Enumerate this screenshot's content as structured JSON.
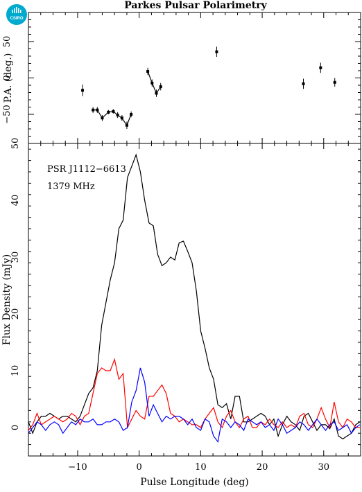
{
  "title": "Parkes Pulsar Polarimetry",
  "logo": {
    "text": "CSIRO",
    "color": "#00A9CE"
  },
  "colors": {
    "total": "#000000",
    "linear": "#ff0000",
    "circular": "#0000ff"
  },
  "annotations": {
    "pulsar": "PSR J1112−6613",
    "frequency": "1379 MHz"
  },
  "chart_data": [
    {
      "type": "scatter",
      "panel": "position-angle",
      "ylabel": "P.A. (deg.)",
      "xlim": [
        -18,
        36
      ],
      "ylim": [
        -90,
        90
      ],
      "yticks": [
        50,
        0,
        -50
      ],
      "ytick_labels": [
        "50",
        "0",
        "−50"
      ],
      "points": [
        {
          "x": -9.2,
          "y": -17,
          "err": 8
        },
        {
          "x": -7.5,
          "y": -44,
          "err": 4
        },
        {
          "x": -6.8,
          "y": -44,
          "err": 4
        },
        {
          "x": -6.0,
          "y": -55,
          "err": 4
        },
        {
          "x": -5.0,
          "y": -47,
          "err": 3
        },
        {
          "x": -4.2,
          "y": -46,
          "err": 3
        },
        {
          "x": -3.5,
          "y": -51,
          "err": 4
        },
        {
          "x": -2.8,
          "y": -55,
          "err": 4
        },
        {
          "x": -2.0,
          "y": -65,
          "err": 5
        },
        {
          "x": -1.3,
          "y": -50,
          "err": 4
        },
        {
          "x": 1.4,
          "y": 9,
          "err": 5
        },
        {
          "x": 2.1,
          "y": -7,
          "err": 5
        },
        {
          "x": 2.8,
          "y": -21,
          "err": 5
        },
        {
          "x": 3.5,
          "y": -12,
          "err": 5
        },
        {
          "x": 12.6,
          "y": 36,
          "err": 7
        },
        {
          "x": 26.7,
          "y": -8,
          "err": 7
        },
        {
          "x": 29.5,
          "y": 14,
          "err": 7
        },
        {
          "x": 31.8,
          "y": -6,
          "err": 6
        }
      ],
      "connected_segments": [
        [
          1,
          9
        ],
        [
          10,
          13
        ]
      ]
    },
    {
      "type": "line",
      "panel": "profile",
      "xlabel": "Pulse Longitude (deg)",
      "ylabel": "Flux Density (mJy)",
      "xlim": [
        -18,
        36
      ],
      "ylim": [
        -5,
        50
      ],
      "xticks": [
        -10,
        0,
        10,
        20,
        30
      ],
      "xtick_labels": [
        "−10",
        "0",
        "10",
        "20",
        "30"
      ],
      "yticks": [
        0,
        10,
        20,
        30,
        40,
        50
      ],
      "ytick_labels": [
        "0",
        "10",
        "20",
        "30",
        "40",
        "50"
      ],
      "x": [
        -18,
        -17.3,
        -16.6,
        -15.9,
        -15.2,
        -14.5,
        -13.8,
        -13.1,
        -12.4,
        -11.7,
        -11.0,
        -10.3,
        -9.6,
        -8.9,
        -8.2,
        -7.5,
        -6.8,
        -6.1,
        -5.4,
        -4.7,
        -4.0,
        -3.3,
        -2.6,
        -1.9,
        -1.2,
        -0.5,
        0.2,
        0.9,
        1.6,
        2.3,
        3.0,
        3.7,
        4.4,
        5.1,
        5.8,
        6.5,
        7.2,
        7.9,
        8.6,
        9.3,
        10.0,
        10.7,
        11.4,
        12.1,
        12.8,
        13.5,
        14.2,
        14.9,
        15.6,
        16.3,
        17.0,
        17.7,
        18.4,
        19.1,
        19.8,
        20.5,
        21.2,
        21.9,
        22.6,
        23.3,
        24.0,
        24.7,
        25.4,
        26.1,
        26.8,
        27.5,
        28.2,
        28.9,
        29.6,
        30.3,
        31.0,
        31.7,
        32.4,
        33.1,
        33.8,
        34.5,
        35.2,
        35.9
      ],
      "series": [
        {
          "key": "total",
          "values": [
            1.0,
            -1.0,
            1.0,
            2.0,
            2.0,
            2.5,
            2.0,
            1.5,
            2.0,
            2.0,
            1.5,
            1.0,
            2.0,
            4.0,
            6.0,
            7.0,
            10.0,
            18.0,
            22.0,
            26.0,
            29.0,
            35.0,
            36.5,
            44.0,
            46.0,
            48.0,
            45.0,
            40.0,
            36.0,
            35.5,
            30.5,
            28.5,
            29.0,
            30.0,
            29.5,
            32.5,
            32.8,
            31.0,
            29.0,
            24.0,
            17.0,
            14.0,
            10.5,
            8.5,
            4.0,
            3.5,
            4.2,
            1.5,
            5.5,
            5.5,
            1.0,
            1.0,
            1.5,
            2.0,
            2.5,
            2.0,
            0.5,
            1.5,
            -1.5,
            0.5,
            2.0,
            1.0,
            0.5,
            -0.5,
            2.0,
            2.5,
            1.0,
            -0.5,
            0.5,
            0.5,
            -0.2,
            1.5,
            -1.5,
            -2.0,
            -1.5,
            -1.0,
            0.5,
            1.0
          ]
        },
        {
          "key": "linear",
          "values": [
            -0.5,
            0.5,
            2.5,
            0.5,
            1.0,
            1.5,
            2.0,
            1.5,
            1.0,
            1.5,
            2.5,
            2.0,
            0.5,
            2.0,
            2.5,
            6.0,
            9.5,
            10.5,
            10.0,
            10.0,
            12.0,
            8.5,
            9.5,
            0.0,
            1.5,
            3.0,
            2.0,
            1.5,
            5.5,
            5.5,
            6.5,
            7.5,
            6.0,
            2.5,
            2.0,
            1.0,
            1.5,
            1.0,
            0.5,
            0.5,
            0.0,
            1.5,
            2.5,
            3.5,
            1.0,
            0.0,
            2.0,
            3.0,
            1.0,
            0.0,
            1.5,
            2.0,
            0.0,
            0.0,
            1.0,
            0.5,
            1.5,
            0.5,
            0.0,
            1.0,
            0.0,
            0.5,
            0.0,
            2.0,
            2.5,
            0.5,
            0.0,
            1.5,
            3.5,
            1.5,
            0.0,
            4.5,
            1.0,
            0.0,
            1.5,
            1.0,
            0.0,
            0.0
          ]
        },
        {
          "key": "circular",
          "values": [
            -1.0,
            0.0,
            1.0,
            0.5,
            -0.5,
            0.5,
            1.0,
            0.5,
            -1.0,
            0.0,
            1.0,
            0.5,
            1.5,
            1.0,
            1.0,
            1.5,
            0.5,
            0.5,
            1.0,
            1.0,
            1.5,
            1.0,
            -0.5,
            0.0,
            4.5,
            6.5,
            10.5,
            8.0,
            2.0,
            4.0,
            2.5,
            1.0,
            2.0,
            1.5,
            2.0,
            2.0,
            1.5,
            0.5,
            1.5,
            0.0,
            -0.5,
            1.5,
            1.0,
            -1.5,
            -2.5,
            1.5,
            1.0,
            0.0,
            1.0,
            0.5,
            -0.5,
            1.5,
            1.0,
            0.5,
            1.0,
            0.0,
            0.5,
            -0.5,
            1.5,
            0.5,
            -1.0,
            -0.5,
            0.0,
            1.0,
            0.5,
            -0.5,
            0.5,
            1.5,
            0.5,
            -0.5,
            0.5,
            1.0,
            -0.5,
            0.0,
            0.5,
            -1.0,
            0.0,
            0.5
          ]
        }
      ]
    }
  ]
}
